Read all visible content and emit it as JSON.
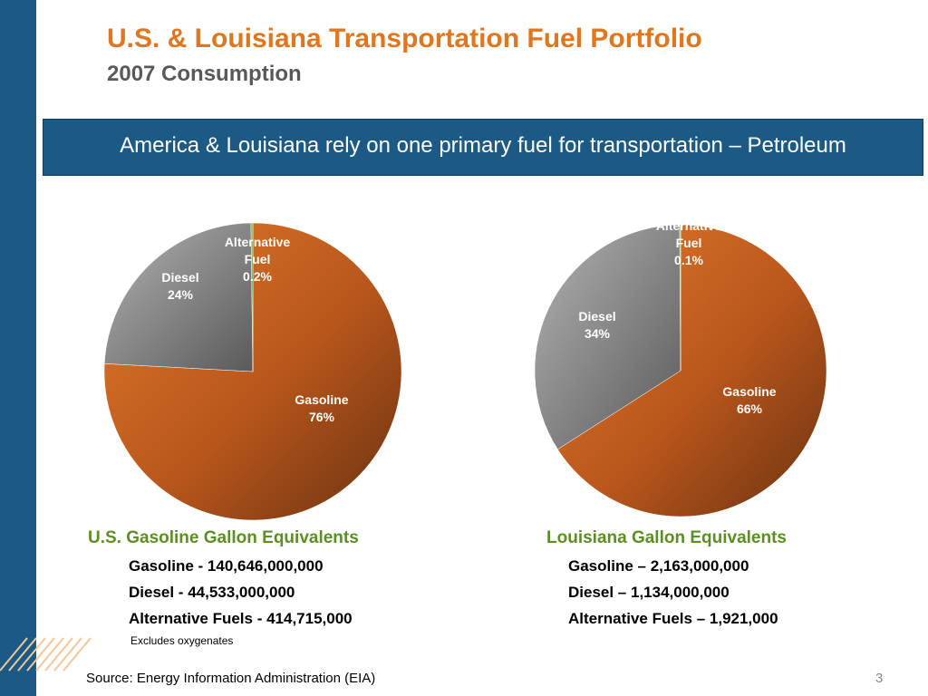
{
  "slide": {
    "title": "U.S. & Louisiana Transportation Fuel Portfolio",
    "subtitle": "2007 Consumption",
    "banner": "America & Louisiana rely on one primary fuel for transportation – Petroleum",
    "note": "Excludes oxygenates",
    "source": "Source: Energy Information Administration (EIA)",
    "page_number": "3"
  },
  "us_stats": {
    "title": "U.S. Gasoline Gallon Equivalents",
    "lines": [
      "Gasoline - 140,646,000,000",
      "Diesel - 44,533,000,000",
      "Alternative Fuels - 414,715,000"
    ]
  },
  "la_stats": {
    "title": "Louisiana Gallon Equivalents",
    "lines": [
      "Gasoline – 2,163,000,000",
      "Diesel – 1,134,000,000",
      "Alternative Fuels – 1,921,000"
    ]
  },
  "colors": {
    "accent_orange": "#e0761e",
    "accent_green": "#5b8f22",
    "navy": "#1b5a84",
    "gasoline": "#c75d1d",
    "diesel": "#8f8f8f",
    "alternative": "#6aa330"
  },
  "chart_data": [
    {
      "type": "pie",
      "id": "us",
      "slices": [
        {
          "label": "Gasoline",
          "value": 76,
          "value_label": "76%",
          "color": "#c75d1d"
        },
        {
          "label": "Diesel",
          "value": 24,
          "value_label": "24%",
          "color": "#8f8f8f"
        },
        {
          "label": "Alternative Fuel",
          "value": 0.2,
          "value_label": "0.2%",
          "color": "#6aa330"
        }
      ]
    },
    {
      "type": "pie",
      "id": "la",
      "slices": [
        {
          "label": "Gasoline",
          "value": 66,
          "value_label": "66%",
          "color": "#c75d1d"
        },
        {
          "label": "Diesel",
          "value": 34,
          "value_label": "34%",
          "color": "#8f8f8f"
        },
        {
          "label": "Alternative Fuel",
          "value": 0.1,
          "value_label": "0.1%",
          "color": "#6aa330"
        }
      ]
    }
  ]
}
